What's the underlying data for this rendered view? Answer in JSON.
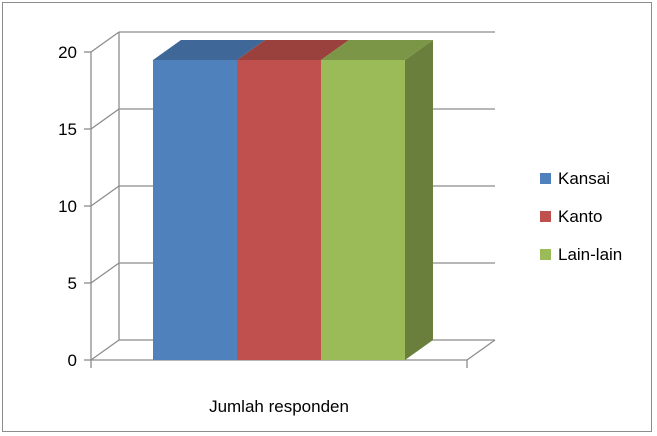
{
  "chart_data": {
    "type": "bar",
    "variant": "3d-clustered-column",
    "categories": [
      "Jumlah responden"
    ],
    "series": [
      {
        "name": "Kansai",
        "values": [
          20
        ],
        "color": "#4f81bd",
        "top_color": "#3f6797",
        "side_color": "#3a5f8a"
      },
      {
        "name": "Kanto",
        "values": [
          20
        ],
        "color": "#c0504d",
        "top_color": "#9a403d",
        "side_color": "#8c3a38"
      },
      {
        "name": "Lain-lain",
        "values": [
          20
        ],
        "color": "#9bbb59",
        "top_color": "#7c9647",
        "side_color": "#6b7f3d"
      }
    ],
    "yticks": [
      "0",
      "5",
      "10",
      "15",
      "20"
    ],
    "ylim": [
      0,
      20
    ],
    "grid": true,
    "legend_position": "right"
  }
}
